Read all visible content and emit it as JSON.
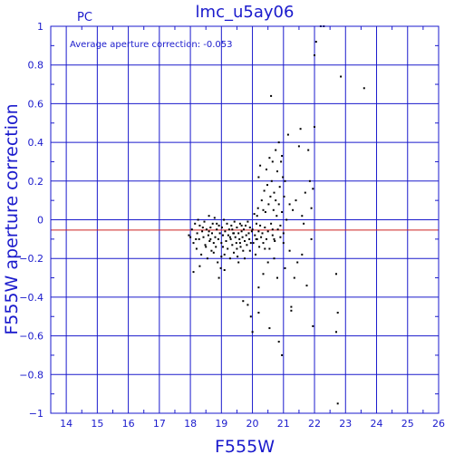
{
  "chart_data": {
    "type": "scatter",
    "title": "lmc_u5ay06",
    "chip_label": "PC",
    "xlabel": "F555W",
    "ylabel": "F555W aperture correction",
    "annotation": "Average aperture correction: -0.053",
    "xlim": [
      13.5,
      26
    ],
    "ylim": [
      -1,
      1
    ],
    "xticks": [
      14,
      15,
      16,
      17,
      18,
      19,
      20,
      21,
      22,
      23,
      24,
      25,
      26
    ],
    "yticks": [
      -1,
      -0.8,
      -0.6,
      -0.4,
      -0.2,
      0,
      0.2,
      0.4,
      0.6,
      0.8,
      1
    ],
    "ytick_labels": [
      "−1",
      "−0.8",
      "−0.6",
      "−0.4",
      "−0.2",
      "0",
      "0.2",
      "0.4",
      "0.6",
      "0.8",
      "1"
    ],
    "grid": true,
    "reference_lines": [
      {
        "y": 0,
        "color": "#1a1acc"
      },
      {
        "y": -0.053,
        "color": "#cc2222"
      }
    ],
    "colors": {
      "axes": "#1a1acc",
      "points": "#000000",
      "average_line": "#cc2222"
    },
    "points": [
      [
        17.95,
        -0.08
      ],
      [
        18.05,
        -0.05
      ],
      [
        18.1,
        -0.12
      ],
      [
        18.15,
        -0.02
      ],
      [
        18.2,
        -0.15
      ],
      [
        18.22,
        -0.07
      ],
      [
        18.28,
        -0.1
      ],
      [
        18.3,
        -0.03
      ],
      [
        18.35,
        -0.18
      ],
      [
        18.38,
        -0.06
      ],
      [
        18.42,
        -0.09
      ],
      [
        18.45,
        -0.01
      ],
      [
        18.48,
        -0.13
      ],
      [
        18.52,
        -0.05
      ],
      [
        18.55,
        -0.2
      ],
      [
        18.58,
        -0.08
      ],
      [
        18.6,
        0.02
      ],
      [
        18.62,
        -0.11
      ],
      [
        18.65,
        -0.04
      ],
      [
        18.68,
        -0.16
      ],
      [
        18.7,
        -0.07
      ],
      [
        18.72,
        -0.02
      ],
      [
        18.75,
        -0.12
      ],
      [
        18.78,
        0.01
      ],
      [
        18.8,
        -0.09
      ],
      [
        18.82,
        -0.14
      ],
      [
        18.85,
        -0.05
      ],
      [
        18.88,
        -0.22
      ],
      [
        18.9,
        -0.1
      ],
      [
        18.92,
        -0.03
      ],
      [
        18.95,
        -0.07
      ],
      [
        18.98,
        -0.25
      ],
      [
        19.0,
        -0.12
      ],
      [
        19.02,
        -0.04
      ],
      [
        19.05,
        -0.08
      ],
      [
        19.08,
        0.0
      ],
      [
        19.1,
        -0.18
      ],
      [
        19.12,
        -0.06
      ],
      [
        19.15,
        -0.11
      ],
      [
        19.18,
        -0.02
      ],
      [
        19.2,
        -0.15
      ],
      [
        19.22,
        -0.08
      ],
      [
        19.25,
        -0.05
      ],
      [
        19.28,
        -0.2
      ],
      [
        19.3,
        -0.1
      ],
      [
        19.32,
        -0.03
      ],
      [
        19.35,
        -0.13
      ],
      [
        19.38,
        -0.07
      ],
      [
        19.4,
        -0.17
      ],
      [
        19.42,
        -0.01
      ],
      [
        19.45,
        -0.09
      ],
      [
        19.48,
        -0.12
      ],
      [
        19.5,
        -0.04
      ],
      [
        19.52,
        -0.19
      ],
      [
        19.55,
        -0.07
      ],
      [
        19.58,
        -0.1
      ],
      [
        19.6,
        -0.02
      ],
      [
        19.62,
        -0.14
      ],
      [
        19.65,
        -0.06
      ],
      [
        19.68,
        -0.09
      ],
      [
        19.7,
        -0.16
      ],
      [
        19.72,
        -0.05
      ],
      [
        19.75,
        -0.11
      ],
      [
        19.78,
        -0.03
      ],
      [
        19.8,
        -0.08
      ],
      [
        19.82,
        -0.13
      ],
      [
        19.85,
        -0.01
      ],
      [
        19.88,
        -0.07
      ],
      [
        19.9,
        -0.1
      ],
      [
        19.92,
        -0.04
      ],
      [
        19.95,
        -0.12
      ],
      [
        19.98,
        -0.06
      ],
      [
        18.1,
        -0.27
      ],
      [
        18.3,
        -0.24
      ],
      [
        18.92,
        -0.3
      ],
      [
        19.1,
        -0.26
      ],
      [
        19.55,
        -0.22
      ],
      [
        19.75,
        -0.2
      ],
      [
        18.4,
        -0.04
      ],
      [
        18.65,
        -0.1
      ],
      [
        18.85,
        -0.02
      ],
      [
        19.05,
        -0.14
      ],
      [
        19.35,
        -0.05
      ],
      [
        19.6,
        -0.12
      ],
      [
        18.18,
        -0.1
      ],
      [
        18.5,
        -0.14
      ],
      [
        18.75,
        -0.17
      ],
      [
        19.0,
        -0.19
      ],
      [
        19.28,
        -0.09
      ],
      [
        19.5,
        -0.15
      ],
      [
        20.0,
        -0.05
      ],
      [
        20.03,
        -0.12
      ],
      [
        20.06,
        0.03
      ],
      [
        20.08,
        -0.08
      ],
      [
        20.1,
        -0.18
      ],
      [
        20.13,
        -0.02
      ],
      [
        20.15,
        -0.1
      ],
      [
        20.18,
        0.06
      ],
      [
        20.2,
        -0.06
      ],
      [
        20.22,
        -0.14
      ],
      [
        20.25,
        -0.03
      ],
      [
        20.28,
        -0.09
      ],
      [
        20.3,
        0.1
      ],
      [
        20.32,
        -0.07
      ],
      [
        20.35,
        -0.12
      ],
      [
        20.38,
        0.15
      ],
      [
        20.4,
        -0.04
      ],
      [
        20.42,
        0.04
      ],
      [
        20.45,
        -0.1
      ],
      [
        20.48,
        0.18
      ],
      [
        20.5,
        -0.06
      ],
      [
        20.52,
        0.08
      ],
      [
        20.55,
        -0.15
      ],
      [
        20.58,
        0.12
      ],
      [
        20.6,
        -0.02
      ],
      [
        20.62,
        0.2
      ],
      [
        20.65,
        -0.08
      ],
      [
        20.68,
        0.05
      ],
      [
        20.7,
        0.14
      ],
      [
        20.72,
        -0.11
      ],
      [
        20.75,
        0.1
      ],
      [
        20.78,
        0.02
      ],
      [
        20.8,
        0.25
      ],
      [
        20.82,
        -0.05
      ],
      [
        20.85,
        0.08
      ],
      [
        20.88,
        0.17
      ],
      [
        20.9,
        -0.09
      ],
      [
        20.92,
        0.3
      ],
      [
        20.95,
        0.04
      ],
      [
        20.98,
        0.22
      ],
      [
        21.0,
        -0.07
      ],
      [
        21.02,
        0.12
      ],
      [
        20.25,
        0.28
      ],
      [
        20.35,
        0.05
      ],
      [
        20.45,
        0.26
      ],
      [
        20.55,
        0.32
      ],
      [
        20.65,
        0.3
      ],
      [
        20.75,
        0.36
      ],
      [
        20.85,
        0.4
      ],
      [
        20.95,
        0.33
      ],
      [
        21.05,
        0.2
      ],
      [
        21.15,
        0.44
      ],
      [
        21.3,
        0.05
      ],
      [
        21.4,
        0.1
      ],
      [
        21.5,
        0.38
      ],
      [
        21.6,
        0.02
      ],
      [
        21.7,
        0.14
      ],
      [
        21.8,
        0.36
      ],
      [
        21.9,
        0.06
      ],
      [
        22.0,
        0.48
      ],
      [
        21.1,
        0.0
      ],
      [
        21.2,
        0.08
      ],
      [
        21.55,
        0.47
      ],
      [
        21.65,
        -0.02
      ],
      [
        21.85,
        0.2
      ],
      [
        21.95,
        0.16
      ],
      [
        20.6,
        0.64
      ],
      [
        20.2,
        0.22
      ],
      [
        20.15,
        0.02
      ],
      [
        21.0,
        -0.12
      ],
      [
        20.5,
        -0.22
      ],
      [
        20.8,
        -0.3
      ],
      [
        21.05,
        -0.25
      ],
      [
        21.2,
        -0.16
      ],
      [
        21.35,
        -0.3
      ],
      [
        21.6,
        -0.18
      ],
      [
        21.75,
        -0.34
      ],
      [
        21.9,
        -0.1
      ],
      [
        20.2,
        -0.35
      ],
      [
        20.35,
        -0.28
      ],
      [
        20.7,
        -0.2
      ],
      [
        21.25,
        -0.45
      ],
      [
        20.65,
        -0.05
      ],
      [
        21.45,
        -0.22
      ],
      [
        19.7,
        -0.42
      ],
      [
        19.85,
        -0.44
      ],
      [
        19.95,
        -0.5
      ],
      [
        20.0,
        -0.58
      ],
      [
        20.2,
        -0.48
      ],
      [
        20.55,
        -0.56
      ],
      [
        20.85,
        -0.63
      ],
      [
        20.95,
        -0.7
      ],
      [
        21.25,
        -0.47
      ],
      [
        21.95,
        -0.55
      ],
      [
        22.7,
        -0.58
      ],
      [
        22.75,
        -0.48
      ],
      [
        22.7,
        -0.28
      ],
      [
        22.75,
        -0.95
      ],
      [
        22.3,
        1.0
      ],
      [
        22.0,
        0.85
      ],
      [
        22.05,
        0.92
      ],
      [
        22.85,
        0.74
      ],
      [
        23.6,
        0.68
      ],
      [
        22.2,
        1.0
      ],
      [
        18.0,
        -0.09
      ],
      [
        18.25,
        0.0
      ],
      [
        18.6,
        -0.06
      ],
      [
        19.4,
        -0.07
      ],
      [
        19.65,
        -0.03
      ],
      [
        19.92,
        -0.16
      ],
      [
        20.12,
        -0.1
      ],
      [
        20.4,
        -0.15
      ],
      [
        20.7,
        -0.1
      ],
      [
        20.9,
        -0.03
      ]
    ]
  }
}
